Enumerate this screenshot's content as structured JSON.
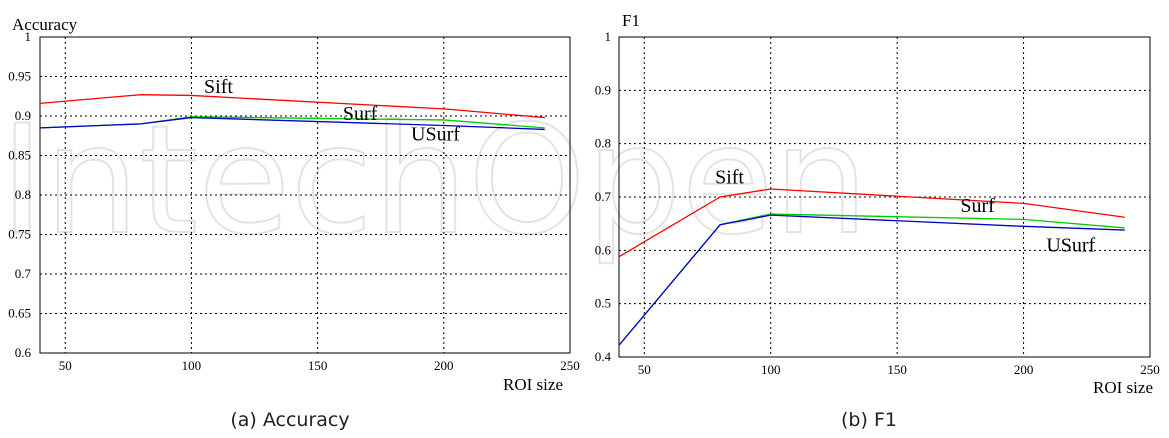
{
  "watermark": "IntechOpen",
  "chart_data": [
    {
      "type": "line",
      "title": "",
      "ylabel": "Accuracy",
      "xlabel": "ROI size",
      "caption": "(a)  Accuracy",
      "xlim": [
        40,
        250
      ],
      "ylim": [
        0.6,
        1.0
      ],
      "xticks": [
        50,
        100,
        150,
        200,
        250
      ],
      "yticks": [
        0.6,
        0.65,
        0.7,
        0.75,
        0.8,
        0.85,
        0.9,
        0.95,
        1
      ],
      "ytick_labels": [
        "0.6",
        "0.65",
        "0.7",
        "0.75",
        "0.8",
        "0.85",
        "0.9",
        "0.95",
        "1"
      ],
      "grid": true,
      "series": [
        {
          "name": "Sift",
          "color": "#ff0000",
          "x": [
            40,
            80,
            100,
            200,
            240
          ],
          "y": [
            0.916,
            0.927,
            0.926,
            0.909,
            0.898
          ]
        },
        {
          "name": "Surf",
          "color": "#00cc00",
          "x": [
            40,
            80,
            100,
            200,
            240
          ],
          "y": [
            0.885,
            0.89,
            0.899,
            0.895,
            0.885
          ]
        },
        {
          "name": "USurf",
          "color": "#0000cc",
          "x": [
            40,
            80,
            100,
            200,
            240
          ],
          "y": [
            0.885,
            0.89,
            0.898,
            0.888,
            0.883
          ]
        }
      ],
      "annotations": [
        {
          "text": "Sift",
          "x": 105,
          "y": 0.929
        },
        {
          "text": "Surf",
          "x": 160,
          "y": 0.895
        },
        {
          "text": "USurf",
          "x": 187,
          "y": 0.869
        }
      ]
    },
    {
      "type": "line",
      "title": "",
      "ylabel": "F1",
      "xlabel": "ROI size",
      "caption": "(b)  F1",
      "xlim": [
        40,
        250
      ],
      "ylim": [
        0.4,
        1.0
      ],
      "xticks": [
        50,
        100,
        150,
        200,
        250
      ],
      "yticks": [
        0.4,
        0.5,
        0.6,
        0.7,
        0.8,
        0.9,
        1
      ],
      "ytick_labels": [
        "0.4",
        "0.5",
        "0.6",
        "0.7",
        "0.8",
        "0.9",
        "1"
      ],
      "grid": true,
      "series": [
        {
          "name": "Sift",
          "color": "#ff0000",
          "x": [
            40,
            80,
            100,
            200,
            240
          ],
          "y": [
            0.588,
            0.7,
            0.715,
            0.688,
            0.662
          ]
        },
        {
          "name": "Surf",
          "color": "#00cc00",
          "x": [
            40,
            80,
            100,
            200,
            240
          ],
          "y": [
            0.422,
            0.648,
            0.668,
            0.658,
            0.642
          ]
        },
        {
          "name": "USurf",
          "color": "#0000cc",
          "x": [
            40,
            80,
            100,
            200,
            240
          ],
          "y": [
            0.422,
            0.648,
            0.666,
            0.645,
            0.638
          ]
        }
      ],
      "annotations": [
        {
          "text": "Sift",
          "x": 78,
          "y": 0.725
        },
        {
          "text": "Surf",
          "x": 175,
          "y": 0.672
        },
        {
          "text": "USurf",
          "x": 209,
          "y": 0.598
        }
      ]
    }
  ]
}
